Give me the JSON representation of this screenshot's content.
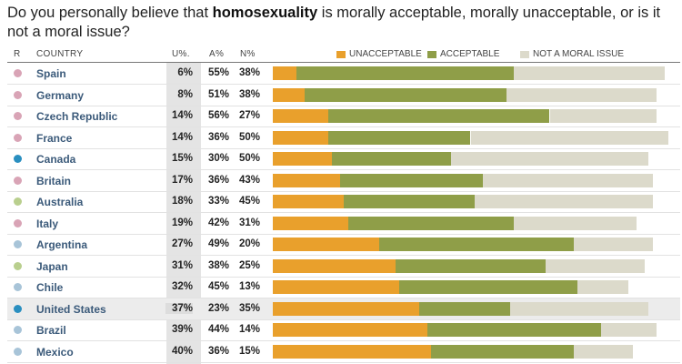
{
  "title_pre": "Do you personally believe that ",
  "title_bold": "homosexuality",
  "title_post": " is morally acceptable, morally unacceptable, or is it not a moral issue?",
  "chart_data": {
    "type": "bar",
    "stacked": true,
    "orientation": "horizontal",
    "headers": {
      "rank": "R",
      "country": "COUNTRY",
      "u": "U%.",
      "a": "A%",
      "n": "N%"
    },
    "legend": [
      {
        "name": "UNACCEPTABLE",
        "color": "#e9a02c"
      },
      {
        "name": "ACCEPTABLE",
        "color": "#8f9e48"
      },
      {
        "name": "NOT A MORAL ISSUE",
        "color": "#dcdacb"
      }
    ],
    "rows": [
      {
        "country": "Spain",
        "u": 6,
        "a": 55,
        "n": 38,
        "u_label": "6%",
        "a_label": "55%",
        "n_label": "38%",
        "dot": "#d9a4b6"
      },
      {
        "country": "Germany",
        "u": 8,
        "a": 51,
        "n": 38,
        "u_label": "8%",
        "a_label": "51%",
        "n_label": "38%",
        "dot": "#d9a4b6"
      },
      {
        "country": "Czech Republic",
        "u": 14,
        "a": 56,
        "n": 27,
        "u_label": "14%",
        "a_label": "56%",
        "n_label": "27%",
        "dot": "#d9a4b6"
      },
      {
        "country": "France",
        "u": 14,
        "a": 36,
        "n": 50,
        "u_label": "14%",
        "a_label": "36%",
        "n_label": "50%",
        "dot": "#d9a4b6"
      },
      {
        "country": "Canada",
        "u": 15,
        "a": 30,
        "n": 50,
        "u_label": "15%",
        "a_label": "30%",
        "n_label": "50%",
        "dot": "#2a8fc0"
      },
      {
        "country": "Britain",
        "u": 17,
        "a": 36,
        "n": 43,
        "u_label": "17%",
        "a_label": "36%",
        "n_label": "43%",
        "dot": "#d9a4b6"
      },
      {
        "country": "Australia",
        "u": 18,
        "a": 33,
        "n": 45,
        "u_label": "18%",
        "a_label": "33%",
        "n_label": "45%",
        "dot": "#b9cf8e"
      },
      {
        "country": "Italy",
        "u": 19,
        "a": 42,
        "n": 31,
        "u_label": "19%",
        "a_label": "42%",
        "n_label": "31%",
        "dot": "#d9a4b6"
      },
      {
        "country": "Argentina",
        "u": 27,
        "a": 49,
        "n": 20,
        "u_label": "27%",
        "a_label": "49%",
        "n_label": "20%",
        "dot": "#a8c4d8"
      },
      {
        "country": "Japan",
        "u": 31,
        "a": 38,
        "n": 25,
        "u_label": "31%",
        "a_label": "38%",
        "n_label": "25%",
        "dot": "#b9cf8e"
      },
      {
        "country": "Chile",
        "u": 32,
        "a": 45,
        "n": 13,
        "u_label": "32%",
        "a_label": "45%",
        "n_label": "13%",
        "dot": "#a8c4d8"
      },
      {
        "country": "United States",
        "u": 37,
        "a": 23,
        "n": 35,
        "u_label": "37%",
        "a_label": "23%",
        "n_label": "35%",
        "dot": "#2a8fc0",
        "highlight": true
      },
      {
        "country": "Brazil",
        "u": 39,
        "a": 44,
        "n": 14,
        "u_label": "39%",
        "a_label": "44%",
        "n_label": "14%",
        "dot": "#a8c4d8"
      },
      {
        "country": "Mexico",
        "u": 40,
        "a": 36,
        "n": 15,
        "u_label": "40%",
        "a_label": "36%",
        "n_label": "15%",
        "dot": "#a8c4d8"
      }
    ]
  }
}
